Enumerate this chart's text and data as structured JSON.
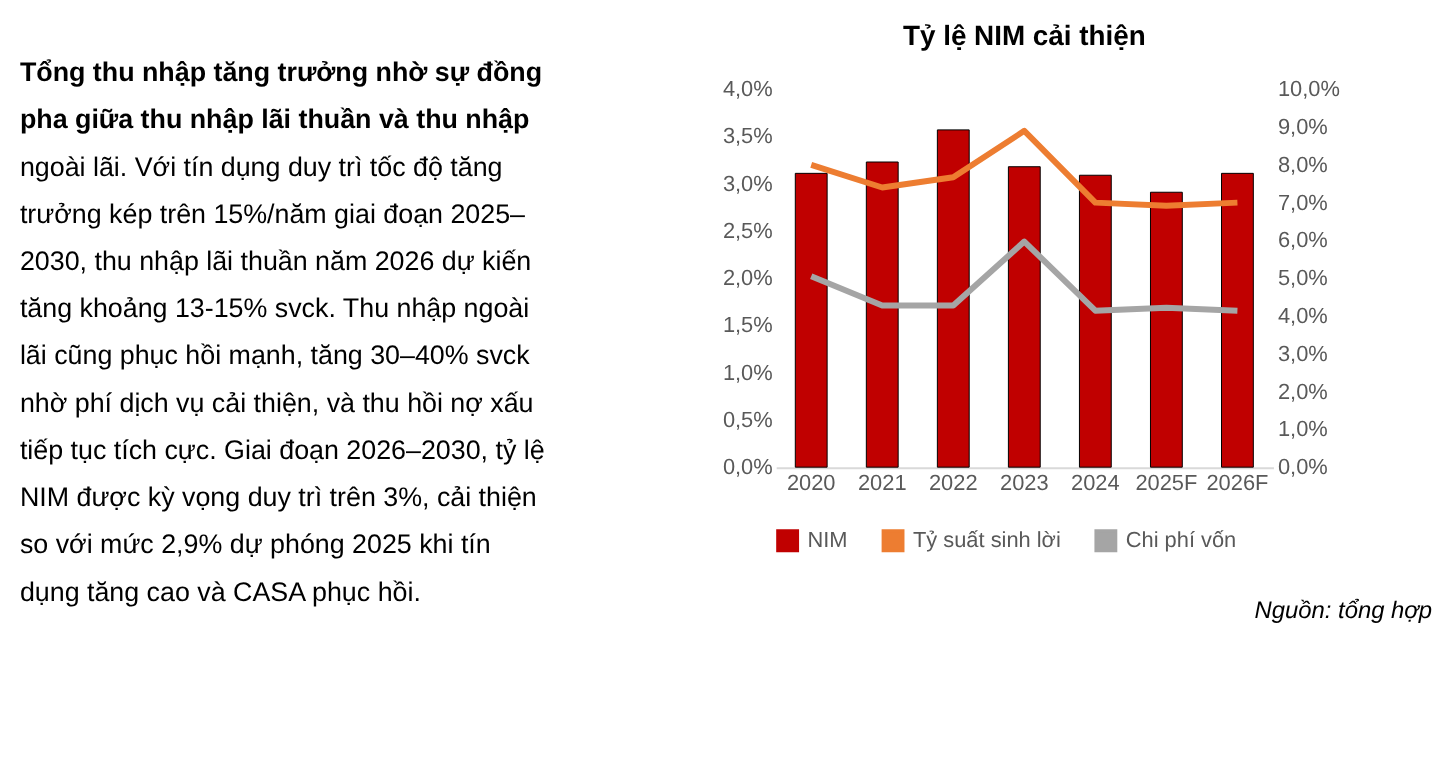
{
  "chart_data": {
    "type": "bar",
    "title": "Tỷ lệ NIM cải thiện",
    "categories": [
      "2020",
      "2021",
      "2022",
      "2023",
      "2024",
      "2025F",
      "2026F"
    ],
    "series": [
      {
        "name": "NIM",
        "color": "#c00000",
        "values": [
          3.11,
          3.23,
          3.57,
          3.18,
          3.09,
          2.91,
          3.11
        ]
      },
      {
        "name": "Tỷ suất sinh lời",
        "type": "line",
        "axis": "y2",
        "color": "#ed7d31",
        "values": [
          8.0,
          7.4,
          7.67,
          8.9,
          7.0,
          6.92,
          7.0
        ]
      },
      {
        "name": "Chi phí vốn",
        "type": "line",
        "axis": "y2",
        "color": "#a5a5a5",
        "values": [
          5.05,
          4.28,
          4.28,
          5.97,
          4.14,
          4.22,
          4.14
        ]
      }
    ],
    "ylim": [
      0,
      4
    ],
    "yticks": [
      {
        "value": 0,
        "label": "0,0%"
      },
      {
        "value": 0.5,
        "label": "0,5%"
      },
      {
        "value": 1,
        "label": "1,0%"
      },
      {
        "value": 1.5,
        "label": "1,5%"
      },
      {
        "value": 2,
        "label": "2,0%"
      },
      {
        "value": 2.5,
        "label": "2,5%"
      },
      {
        "value": 3,
        "label": "3,0%"
      },
      {
        "value": 3.5,
        "label": "3,5%"
      },
      {
        "value": 4,
        "label": "4,0%"
      }
    ],
    "y2lim": [
      0,
      10
    ],
    "y2ticks": [
      {
        "value": 0,
        "label": "0,0%"
      },
      {
        "value": 1,
        "label": "1,0%"
      },
      {
        "value": 2,
        "label": "2,0%"
      },
      {
        "value": 3,
        "label": "3,0%"
      },
      {
        "value": 4,
        "label": "4,0%"
      },
      {
        "value": 5,
        "label": "5,0%"
      },
      {
        "value": 6,
        "label": "6,0%"
      },
      {
        "value": 7,
        "label": "7,0%"
      },
      {
        "value": 8,
        "label": "8,0%"
      },
      {
        "value": 9,
        "label": "9,0%"
      },
      {
        "value": 10,
        "label": "10,0%"
      }
    ],
    "grid": false,
    "legend": "bottom",
    "marker": "none",
    "line_style": "solid",
    "annotations": [
      "Tổng thu nhập tăng trưởng nhờ sự đồng",
      "pha giữa thu nhập lãi thuần và thu nhập",
      "ngoài lãi. Với tín dụng duy trì tốc độ tăng",
      "trưởng kép trên 15%/năm giai đoạn 2025–",
      "2030, thu nhập lãi thuần năm 2026 dự kiến",
      "tăng khoảng 13-15% svck. Thu nhập ngoài",
      "lãi cũng phục hồi mạnh, tăng 30–40% svck",
      "nhờ phí dịch vụ cải thiện, và thu hồi nợ xấu",
      "tiếp tục tích cực. Giai đoạn 2026–2030, tỷ lệ",
      "NIM được kỳ vọng duy trì trên 3%, cải thiện",
      "so với mức 2,9% dự phóng 2025 khi tín",
      "dụng tăng cao và CASA phục hồi.",
      "Nguồn: tổng hợp"
    ]
  }
}
